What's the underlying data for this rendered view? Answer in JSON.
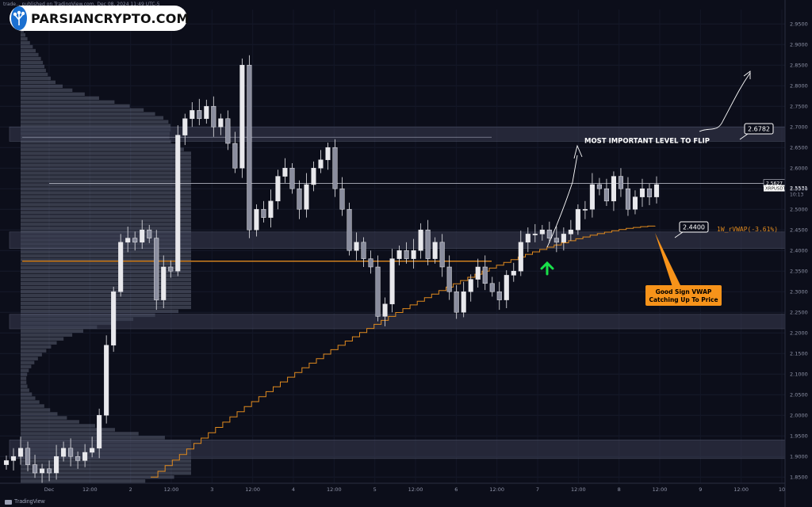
{
  "header": {
    "published_line": "trade... published on TradingView.com, Dec 08, 2024 11:49 UTC-5"
  },
  "watermark": {
    "brand": "PARSIANCRYPTO.COM",
    "brand_icon": "tree-logo-icon",
    "platform": "TradingView",
    "platform_icon": "tradingview-logo-icon"
  },
  "colors": {
    "background": "#0c0e1a",
    "candle": "#e8e8ec",
    "vwap": "#e08a1e",
    "zone": "#3a3d52",
    "callout": "#f7931a",
    "arrow_green": "#19e14a",
    "volume_profile": "#8a8ea6"
  },
  "chart_data": {
    "type": "candlestick",
    "symbol": "XRPUSDT",
    "x_ticks": [
      "Dec",
      "12:00",
      "2",
      "12:00",
      "3",
      "12:00",
      "4",
      "12:00",
      "5",
      "12:00",
      "6",
      "12:00",
      "7",
      "12:00",
      "8",
      "12:00",
      "9",
      "12:00",
      "10"
    ],
    "y_ticks": [
      "2.9500",
      "2.9000",
      "2.8500",
      "2.8000",
      "2.7500",
      "2.7000",
      "2.6500",
      "2.6000",
      "2.5500",
      "2.5000",
      "2.4500",
      "2.4000",
      "2.3500",
      "2.3000",
      "2.2500",
      "2.2000",
      "2.1500",
      "2.1000",
      "2.0500",
      "2.0000",
      "1.9500",
      "1.9000",
      "1.8500"
    ],
    "ylim": [
      1.835,
      2.985
    ],
    "candles_close": [
      1.89,
      1.9,
      1.92,
      1.88,
      1.86,
      1.87,
      1.86,
      1.9,
      1.92,
      1.9,
      1.89,
      1.91,
      1.92,
      2.0,
      2.17,
      2.3,
      2.42,
      2.43,
      2.42,
      2.45,
      2.43,
      2.28,
      2.36,
      2.35,
      2.68,
      2.72,
      2.74,
      2.72,
      2.75,
      2.7,
      2.72,
      2.66,
      2.6,
      2.85,
      2.45,
      2.5,
      2.48,
      2.52,
      2.58,
      2.6,
      2.55,
      2.5,
      2.56,
      2.6,
      2.62,
      2.65,
      2.55,
      2.5,
      2.4,
      2.42,
      2.38,
      2.36,
      2.24,
      2.27,
      2.38,
      2.4,
      2.38,
      2.4,
      2.45,
      2.38,
      2.42,
      2.36,
      2.3,
      2.25,
      2.3,
      2.33,
      2.36,
      2.32,
      2.3,
      2.28,
      2.34,
      2.35,
      2.42,
      2.44,
      2.44,
      2.45,
      2.43,
      2.42,
      2.44,
      2.45,
      2.5,
      2.5,
      2.56,
      2.55,
      2.52,
      2.58,
      2.55,
      2.5,
      2.53,
      2.55,
      2.53,
      2.56
    ],
    "current_price": "2.5531",
    "current_price_high": "2.5627",
    "countdown": "10:13",
    "levels": [
      {
        "label": "2.6782",
        "value": 2.6782
      },
      {
        "label": "2.4400",
        "value": 2.44
      }
    ],
    "zones": [
      {
        "low": 2.665,
        "high": 2.7
      },
      {
        "low": 2.405,
        "high": 2.445
      },
      {
        "low": 2.21,
        "high": 2.245
      },
      {
        "low": 1.895,
        "high": 1.94
      }
    ],
    "vwap": {
      "label": "1W_rVWAP(-3.61%)",
      "start": 1.85,
      "end": 2.46
    },
    "annotations": {
      "main": "MOST IMPORTANT LEVEL TO FLIP",
      "callout_line1": "Good Sign VWAP",
      "callout_line2": "Catching Up To Price"
    }
  }
}
